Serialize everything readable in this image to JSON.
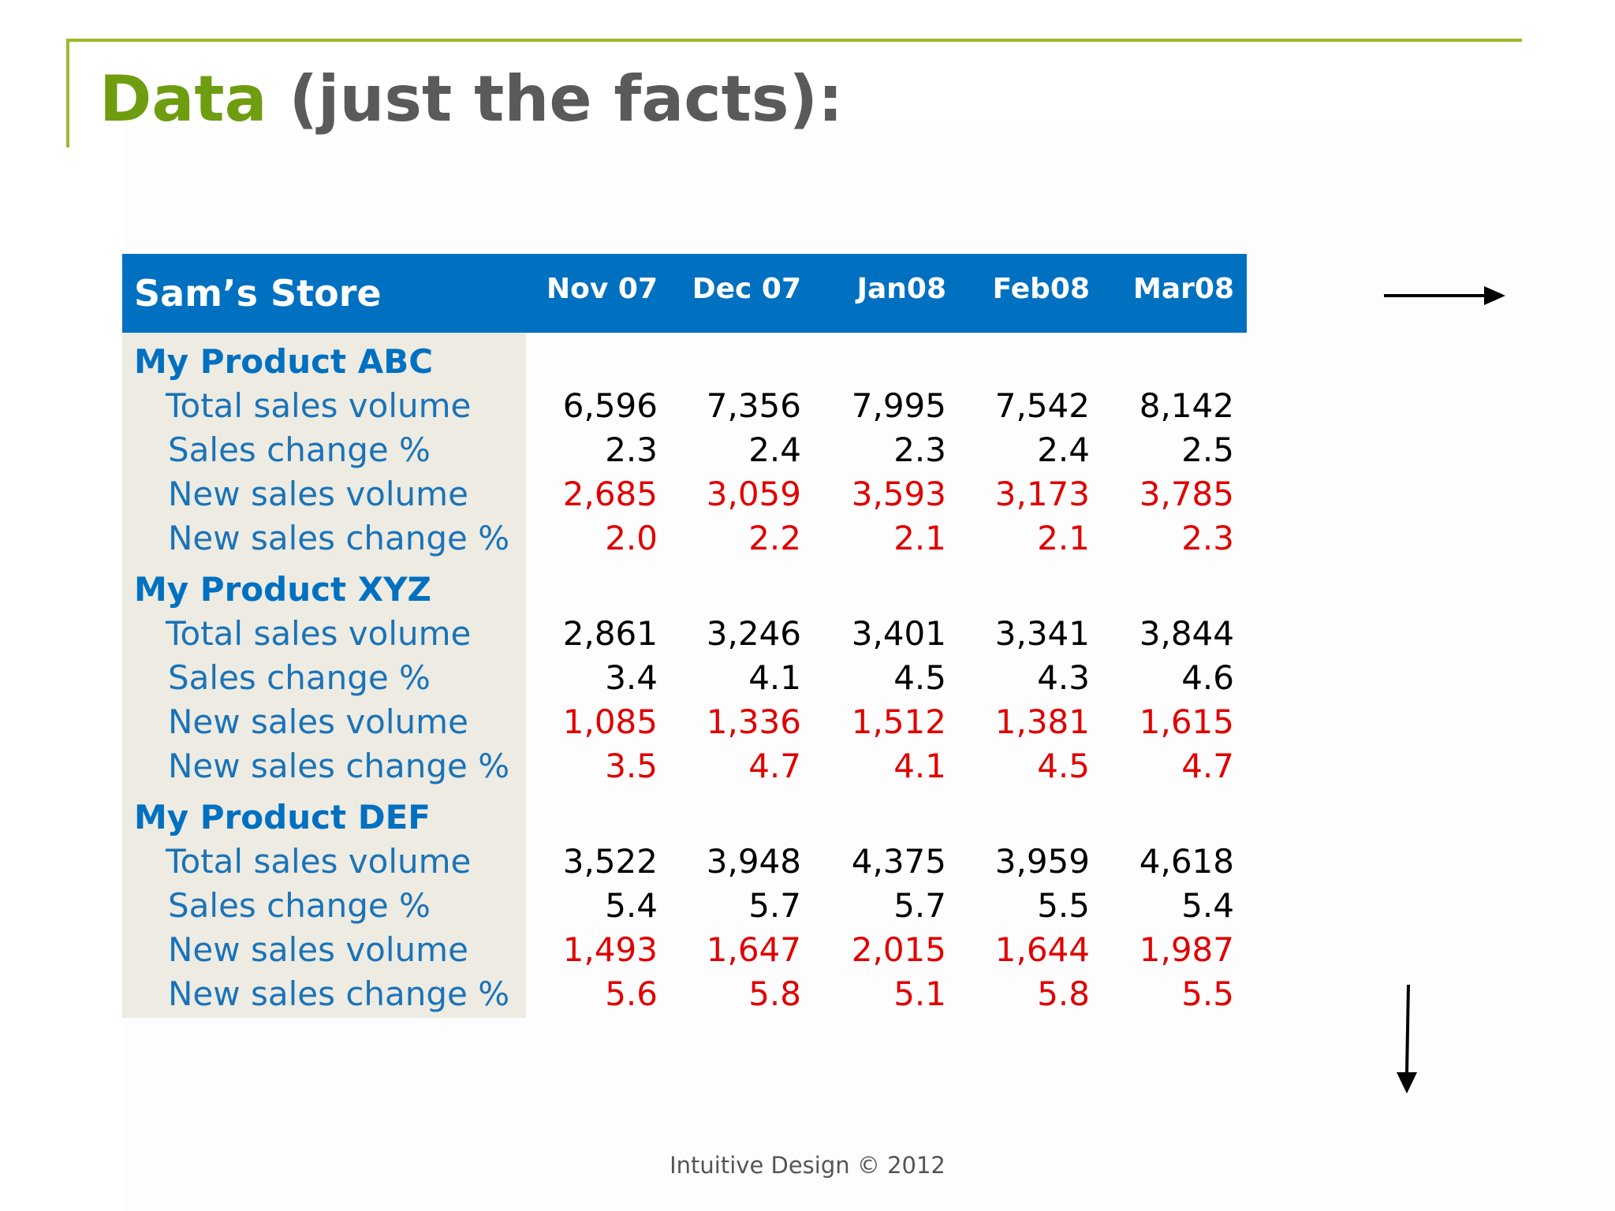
{
  "slide": {
    "title_accent": "Data",
    "title_rest": " (just the facts):",
    "footer": "Intuitive Design © 2012"
  },
  "table": {
    "store": "Sam’s Store",
    "columns": [
      "Nov 07",
      "Dec 07",
      "Jan08",
      "Feb08",
      "Mar08"
    ],
    "products": [
      {
        "name": "My Product ABC",
        "rows": [
          {
            "label": "Total sales volume",
            "values": [
              "6,596",
              "7,356",
              "7,995",
              "7,542",
              "8,142"
            ],
            "color": "black"
          },
          {
            "label": "Sales change %",
            "values": [
              "2.3",
              "2.4",
              "2.3",
              "2.4",
              "2.5"
            ],
            "color": "black"
          },
          {
            "label": "New sales volume",
            "values": [
              "2,685",
              "3,059",
              "3,593",
              "3,173",
              "3,785"
            ],
            "color": "red"
          },
          {
            "label": "New sales change %",
            "values": [
              "2.0",
              "2.2",
              "2.1",
              "2.1",
              "2.3"
            ],
            "color": "red"
          }
        ]
      },
      {
        "name": "My Product XYZ",
        "rows": [
          {
            "label": "Total sales volume",
            "values": [
              "2,861",
              "3,246",
              "3,401",
              "3,341",
              "3,844"
            ],
            "color": "black"
          },
          {
            "label": "Sales change %",
            "values": [
              "3.4",
              "4.1",
              "4.5",
              "4.3",
              "4.6"
            ],
            "color": "black"
          },
          {
            "label": "New sales volume",
            "values": [
              "1,085",
              "1,336",
              "1,512",
              "1,381",
              "1,615"
            ],
            "color": "red"
          },
          {
            "label": "New sales change %",
            "values": [
              "3.5",
              "4.7",
              "4.1",
              "4.5",
              "4.7"
            ],
            "color": "red"
          }
        ]
      },
      {
        "name": "My Product DEF",
        "rows": [
          {
            "label": "Total sales volume",
            "values": [
              "3,522",
              "3,948",
              "4,375",
              "3,959",
              "4,618"
            ],
            "color": "black"
          },
          {
            "label": "Sales change %",
            "values": [
              "5.4",
              "5.7",
              "5.7",
              "5.5",
              "5.4"
            ],
            "color": "black"
          },
          {
            "label": "New sales volume",
            "values": [
              "1,493",
              "1,647",
              "2,015",
              "1,644",
              "1,987"
            ],
            "color": "red"
          },
          {
            "label": "New sales change %",
            "values": [
              "5.6",
              "5.8",
              "5.1",
              "5.8",
              "5.5"
            ],
            "color": "red"
          }
        ]
      }
    ]
  },
  "colors": {
    "header_bg": "#0070c0",
    "label_panel_bg": "#edebe2",
    "title_accent": "#6e9d10",
    "title_text": "#5a5a5a",
    "rule": "#9bbb2c",
    "highlight_values": "#e00000"
  },
  "icons": [
    "arrow-right-icon",
    "arrow-down-icon"
  ]
}
